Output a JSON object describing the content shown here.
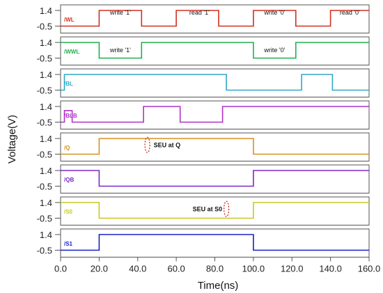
{
  "chart_data": {
    "type": "line",
    "xlabel": "Time(ns)",
    "ylabel": "Voltage(V)",
    "xlim": [
      0,
      160
    ],
    "x_ticks": [
      "0.0",
      "20.0",
      "40.0",
      "60.0",
      "80.0",
      "100.0",
      "120.0",
      "140.0",
      "160.0"
    ],
    "y_tick_top": "1.4",
    "y_tick_bottom": "-0.5",
    "ylim": [
      -0.5,
      1.4
    ],
    "grid": false,
    "series": [
      {
        "name": "/WL",
        "color": "#d03020",
        "x": [
          0,
          20,
          20,
          42,
          42,
          60,
          60,
          82,
          82,
          100,
          100,
          122,
          122,
          140,
          140,
          160
        ],
        "y": [
          -0.5,
          -0.5,
          1.4,
          1.4,
          -0.5,
          -0.5,
          1.4,
          1.4,
          -0.5,
          -0.5,
          1.4,
          1.4,
          -0.5,
          -0.5,
          1.4,
          1.4
        ],
        "labels": [
          {
            "x": 31,
            "text": "write '1'"
          },
          {
            "x": 72,
            "text": "read '1'"
          },
          {
            "x": 111,
            "text": "write '0'"
          },
          {
            "x": 150,
            "text": "read '0'"
          }
        ]
      },
      {
        "name": "/WWL",
        "color": "#20b050",
        "x": [
          0,
          20,
          20,
          42,
          42,
          100,
          100,
          122,
          122,
          160
        ],
        "y": [
          1.4,
          1.4,
          -0.5,
          -0.5,
          1.4,
          1.4,
          -0.5,
          -0.5,
          1.4,
          1.4
        ],
        "labels": [
          {
            "x": 31,
            "text": "write '1'"
          },
          {
            "x": 111,
            "text": "write '0'"
          }
        ]
      },
      {
        "name": "/BL",
        "color": "#30a8c8",
        "x": [
          0,
          2,
          2,
          86,
          86,
          125,
          125,
          141,
          141,
          160
        ],
        "y": [
          -0.5,
          -0.5,
          1.4,
          1.4,
          -0.5,
          -0.5,
          1.4,
          1.4,
          -0.5,
          -0.5
        ],
        "labels": []
      },
      {
        "name": "/BLB",
        "color": "#b030c8",
        "x": [
          0,
          2,
          2,
          6,
          6,
          43,
          43,
          62,
          62,
          84,
          84,
          160
        ],
        "y": [
          -0.5,
          -0.5,
          0.9,
          0.9,
          -0.5,
          -0.5,
          1.4,
          1.4,
          -0.5,
          -0.5,
          1.4,
          1.4
        ],
        "labels": []
      },
      {
        "name": "/Q",
        "color": "#d89020",
        "x": [
          0,
          20,
          20,
          100,
          100,
          160
        ],
        "y": [
          -0.5,
          -0.5,
          1.4,
          1.4,
          -0.5,
          -0.5
        ],
        "labels": []
      },
      {
        "name": "/QB",
        "color": "#7a28c8",
        "x": [
          0,
          20,
          20,
          100,
          100,
          160
        ],
        "y": [
          1.4,
          1.4,
          -0.5,
          -0.5,
          1.4,
          1.4
        ],
        "labels": []
      },
      {
        "name": "/S0",
        "color": "#c8c820",
        "x": [
          0,
          20,
          20,
          100,
          100,
          160
        ],
        "y": [
          1.4,
          1.4,
          -0.5,
          -0.5,
          1.4,
          1.4
        ],
        "labels": []
      },
      {
        "name": "/S1",
        "color": "#1820c8",
        "x": [
          0,
          20,
          20,
          100,
          100,
          160
        ],
        "y": [
          -0.5,
          -0.5,
          1.4,
          1.4,
          -0.5,
          -0.5
        ],
        "labels": []
      }
    ],
    "annotations": [
      {
        "series": "/Q",
        "x": 45,
        "text": "SEU at Q"
      },
      {
        "series": "/S0",
        "x": 86,
        "text": "SEU at S0"
      }
    ]
  }
}
